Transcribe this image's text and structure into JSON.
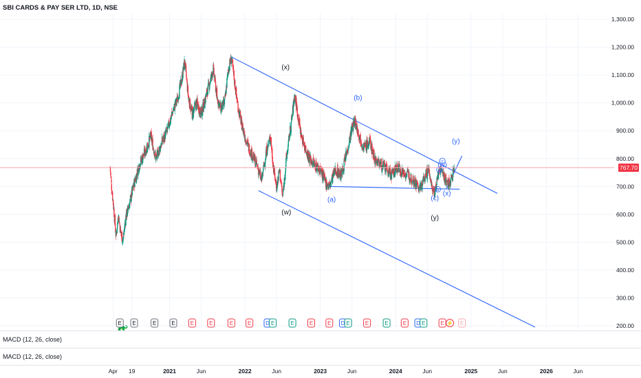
{
  "header": {
    "title": "SBI CARDS & PAY SER LTD, 1D, NSE"
  },
  "current_price": {
    "label": "767.70",
    "value": 767.7,
    "color": "#f23645"
  },
  "panes": [
    {
      "label": "MACD (12, 26, close)"
    },
    {
      "label": "MACD (12, 26, close)"
    }
  ],
  "colors": {
    "up": "#089981",
    "down": "#f23645",
    "drawing": "#2962ff",
    "grid": "#f0f3fa"
  },
  "chart_data": {
    "type": "candlestick",
    "title": "SBI CARDS & PAY SER LTD, 1D, NSE",
    "ylim": [
      190,
      1320
    ],
    "y_ticks": [
      {
        "value": 200,
        "label": "200.00"
      },
      {
        "value": 300,
        "label": "300.00"
      },
      {
        "value": 400,
        "label": "400.00"
      },
      {
        "value": 500,
        "label": "500.00"
      },
      {
        "value": 600,
        "label": "600.00"
      },
      {
        "value": 700,
        "label": "700.00"
      },
      {
        "value": 800,
        "label": "800.00"
      },
      {
        "value": 900,
        "label": "900.00"
      },
      {
        "value": 1000,
        "label": "1,000.00"
      },
      {
        "value": 1100,
        "label": "1,100.00"
      },
      {
        "value": 1200,
        "label": "1,200.00"
      },
      {
        "value": 1300,
        "label": "1,300.00"
      }
    ],
    "x_ticks": [
      {
        "t": 2020.25,
        "label": "Apr",
        "bold": false
      },
      {
        "t": 2020.5,
        "label": "19",
        "bold": false
      },
      {
        "t": 2021.0,
        "label": "2021",
        "bold": true
      },
      {
        "t": 2021.42,
        "label": "Jun",
        "bold": false
      },
      {
        "t": 2022.0,
        "label": "2022",
        "bold": true
      },
      {
        "t": 2022.42,
        "label": "Jun",
        "bold": false
      },
      {
        "t": 2023.0,
        "label": "2023",
        "bold": true
      },
      {
        "t": 2023.42,
        "label": "Jun",
        "bold": false
      },
      {
        "t": 2024.0,
        "label": "2024",
        "bold": true
      },
      {
        "t": 2024.42,
        "label": "Jun",
        "bold": false
      },
      {
        "t": 2025.0,
        "label": "2025",
        "bold": true
      },
      {
        "t": 2025.42,
        "label": "Jun",
        "bold": false
      },
      {
        "t": 2026.0,
        "label": "2026",
        "bold": true
      },
      {
        "t": 2026.42,
        "label": "Jun",
        "bold": false
      }
    ],
    "x_range": [
      2018.75,
      2026.9
    ],
    "price_path": [
      [
        2020.21,
        770
      ],
      [
        2020.23,
        700
      ],
      [
        2020.26,
        620
      ],
      [
        2020.29,
        520
      ],
      [
        2020.32,
        600
      ],
      [
        2020.35,
        540
      ],
      [
        2020.38,
        505
      ],
      [
        2020.42,
        590
      ],
      [
        2020.47,
        640
      ],
      [
        2020.53,
        710
      ],
      [
        2020.6,
        780
      ],
      [
        2020.67,
        820
      ],
      [
        2020.75,
        880
      ],
      [
        2020.82,
        800
      ],
      [
        2020.9,
        860
      ],
      [
        2020.97,
        900
      ],
      [
        2021.03,
        960
      ],
      [
        2021.1,
        1010
      ],
      [
        2021.16,
        1080
      ],
      [
        2021.2,
        1150
      ],
      [
        2021.25,
        1020
      ],
      [
        2021.3,
        960
      ],
      [
        2021.36,
        1000
      ],
      [
        2021.42,
        960
      ],
      [
        2021.5,
        1040
      ],
      [
        2021.58,
        1120
      ],
      [
        2021.63,
        1020
      ],
      [
        2021.68,
        980
      ],
      [
        2021.73,
        1000
      ],
      [
        2021.78,
        1120
      ],
      [
        2021.82,
        1160
      ],
      [
        2021.86,
        1080
      ],
      [
        2021.9,
        1000
      ],
      [
        2021.95,
        930
      ],
      [
        2022.0,
        880
      ],
      [
        2022.05,
        840
      ],
      [
        2022.12,
        800
      ],
      [
        2022.18,
        760
      ],
      [
        2022.22,
        720
      ],
      [
        2022.28,
        820
      ],
      [
        2022.34,
        880
      ],
      [
        2022.38,
        760
      ],
      [
        2022.42,
        700
      ],
      [
        2022.46,
        760
      ],
      [
        2022.5,
        660
      ],
      [
        2022.55,
        800
      ],
      [
        2022.62,
        940
      ],
      [
        2022.66,
        1030
      ],
      [
        2022.7,
        960
      ],
      [
        2022.75,
        880
      ],
      [
        2022.8,
        840
      ],
      [
        2022.86,
        800
      ],
      [
        2022.92,
        780
      ],
      [
        2023.0,
        760
      ],
      [
        2023.06,
        720
      ],
      [
        2023.12,
        700
      ],
      [
        2023.2,
        760
      ],
      [
        2023.28,
        740
      ],
      [
        2023.35,
        820
      ],
      [
        2023.42,
        910
      ],
      [
        2023.46,
        935
      ],
      [
        2023.52,
        880
      ],
      [
        2023.58,
        840
      ],
      [
        2023.66,
        860
      ],
      [
        2023.72,
        800
      ],
      [
        2023.8,
        780
      ],
      [
        2023.88,
        760
      ],
      [
        2023.95,
        740
      ],
      [
        2024.02,
        770
      ],
      [
        2024.1,
        750
      ],
      [
        2024.18,
        740
      ],
      [
        2024.25,
        720
      ],
      [
        2024.32,
        690
      ],
      [
        2024.38,
        730
      ],
      [
        2024.44,
        760
      ],
      [
        2024.48,
        700
      ],
      [
        2024.52,
        680
      ],
      [
        2024.56,
        740
      ],
      [
        2024.6,
        760
      ],
      [
        2024.65,
        730
      ],
      [
        2024.7,
        710
      ],
      [
        2024.74,
        725
      ],
      [
        2024.78,
        767.7
      ]
    ],
    "drawings": {
      "trend_lines": [
        {
          "from": [
            2021.82,
            1165
          ],
          "to": [
            2025.35,
            675
          ]
        },
        {
          "from": [
            2022.18,
            685
          ],
          "to": [
            2025.85,
            195
          ]
        },
        {
          "from": [
            2023.1,
            700
          ],
          "to": [
            2024.85,
            690
          ]
        },
        {
          "from": [
            2024.68,
            694
          ],
          "to": [
            2024.88,
            810
          ]
        }
      ],
      "wave_labels": [
        {
          "t": 2022.54,
          "v": 1120,
          "text": "(x)",
          "color": "#131722"
        },
        {
          "t": 2023.5,
          "v": 1010,
          "text": "(b)",
          "color": "#2962ff"
        },
        {
          "t": 2022.55,
          "v": 600,
          "text": "(w)",
          "color": "#131722"
        },
        {
          "t": 2023.15,
          "v": 645,
          "text": "(a)",
          "color": "#2962ff"
        },
        {
          "t": 2024.52,
          "v": 580,
          "text": "(y)",
          "color": "#131722"
        },
        {
          "t": 2024.52,
          "v": 650,
          "text": "(c)",
          "color": "#2962ff"
        },
        {
          "t": 2024.8,
          "v": 855,
          "text": "(y)",
          "color": "#2962ff"
        },
        {
          "t": 2024.68,
          "v": 668,
          "text": "(x)",
          "color": "#2962ff"
        },
        {
          "t": 2024.62,
          "v": 770,
          "text": "(w)",
          "color": "#2962ff"
        }
      ],
      "circle_labels": [
        {
          "t": 2024.58,
          "v": 760,
          "text": "a"
        },
        {
          "t": 2024.62,
          "v": 792,
          "text": "c"
        },
        {
          "t": 2024.56,
          "v": 690,
          "text": "b"
        }
      ]
    },
    "event_markers": [
      {
        "t": 2020.34,
        "text": "E",
        "kind": "earnings-past"
      },
      {
        "t": 2020.53,
        "text": "E",
        "kind": "earnings-past"
      },
      {
        "t": 2020.8,
        "text": "E",
        "kind": "earnings-past"
      },
      {
        "t": 2021.05,
        "text": "E",
        "kind": "earnings-past"
      },
      {
        "t": 2021.3,
        "text": "E",
        "kind": "earnings-neg"
      },
      {
        "t": 2021.55,
        "text": "E",
        "kind": "earnings-neg"
      },
      {
        "t": 2021.82,
        "text": "E",
        "kind": "earnings-neg"
      },
      {
        "t": 2022.06,
        "text": "E",
        "kind": "earnings-neg"
      },
      {
        "t": 2022.3,
        "text": "D",
        "kind": "dividend"
      },
      {
        "t": 2022.37,
        "text": "E",
        "kind": "earnings-pos"
      },
      {
        "t": 2022.63,
        "text": "E",
        "kind": "earnings-pos"
      },
      {
        "t": 2022.88,
        "text": "E",
        "kind": "earnings-neg"
      },
      {
        "t": 2023.12,
        "text": "E",
        "kind": "earnings-neg"
      },
      {
        "t": 2023.3,
        "text": "D",
        "kind": "dividend"
      },
      {
        "t": 2023.37,
        "text": "E",
        "kind": "earnings-pos"
      },
      {
        "t": 2023.62,
        "text": "E",
        "kind": "earnings-neg"
      },
      {
        "t": 2023.88,
        "text": "E",
        "kind": "earnings-pos"
      },
      {
        "t": 2024.12,
        "text": "E",
        "kind": "earnings-neg"
      },
      {
        "t": 2024.3,
        "text": "D",
        "kind": "dividend"
      },
      {
        "t": 2024.37,
        "text": "E",
        "kind": "earnings-pos"
      },
      {
        "t": 2024.62,
        "text": "E",
        "kind": "earnings-neg"
      },
      {
        "t": 2024.72,
        "text": "⚡",
        "kind": "split"
      },
      {
        "t": 2024.88,
        "text": "E",
        "kind": "earnings-future"
      }
    ]
  }
}
